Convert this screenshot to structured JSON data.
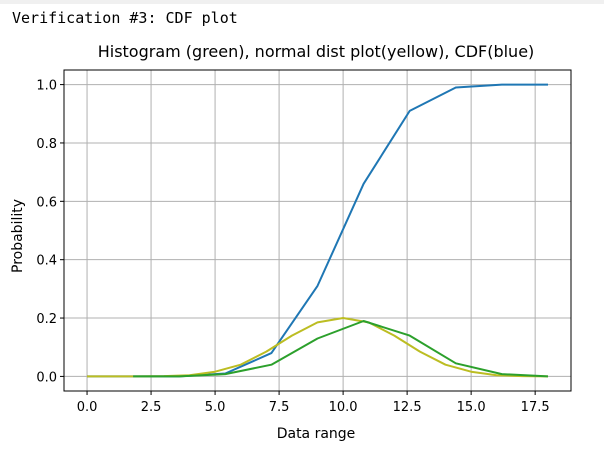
{
  "cell_output_text": "Verification #3: CDF plot",
  "chart_data": {
    "type": "line",
    "title": "Histogram (green), normal dist plot(yellow), CDF(blue)",
    "xlabel": "Data range",
    "ylabel": "Probability",
    "xlim": [
      -0.9,
      18.9
    ],
    "ylim": [
      -0.05,
      1.05
    ],
    "xticks": [
      0.0,
      2.5,
      5.0,
      7.5,
      10.0,
      12.5,
      15.0,
      17.5
    ],
    "xtick_labels": [
      "0.0",
      "2.5",
      "5.0",
      "7.5",
      "10.0",
      "12.5",
      "15.0",
      "17.5"
    ],
    "yticks": [
      0.0,
      0.2,
      0.4,
      0.6,
      0.8,
      1.0
    ],
    "ytick_labels": [
      "0.0",
      "0.2",
      "0.4",
      "0.6",
      "0.8",
      "1.0"
    ],
    "grid": true,
    "series": [
      {
        "color": "#1f77b4",
        "x": [
          0.0,
          1.8,
          3.6,
          5.4,
          7.2,
          9.0,
          10.8,
          12.6,
          14.4,
          16.2,
          18.0
        ],
        "y": [
          0.0,
          0.0,
          0.0,
          0.01,
          0.08,
          0.31,
          0.66,
          0.91,
          0.99,
          1.0,
          1.0
        ]
      },
      {
        "color": "#bcbd22",
        "x": [
          0.0,
          1.0,
          2.0,
          3.0,
          4.0,
          5.0,
          6.0,
          7.0,
          8.0,
          9.0,
          10.0,
          11.0,
          12.0,
          13.0,
          14.0,
          15.0,
          16.0,
          17.0,
          18.0
        ],
        "y": [
          0.0,
          0.0,
          0.0,
          0.001,
          0.004,
          0.016,
          0.04,
          0.085,
          0.14,
          0.185,
          0.2,
          0.185,
          0.14,
          0.085,
          0.04,
          0.016,
          0.004,
          0.001,
          0.0
        ]
      },
      {
        "color": "#2ca02c",
        "x": [
          1.8,
          3.6,
          5.4,
          7.2,
          9.0,
          10.8,
          12.6,
          14.4,
          16.2,
          18.0
        ],
        "y": [
          0.0,
          0.0,
          0.008,
          0.04,
          0.13,
          0.19,
          0.14,
          0.045,
          0.008,
          0.0
        ]
      }
    ]
  }
}
